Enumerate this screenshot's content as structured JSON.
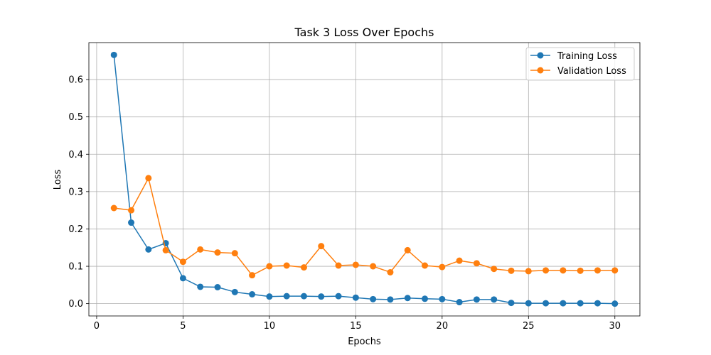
{
  "chart_data": {
    "type": "line",
    "title": "Task 3 Loss Over Epochs",
    "xlabel": "Epochs",
    "ylabel": "Loss",
    "xlim": [
      -0.45,
      31.45
    ],
    "ylim": [
      -0.033,
      0.699
    ],
    "xticks": [
      0,
      5,
      10,
      15,
      20,
      25,
      30
    ],
    "yticks": [
      0.0,
      0.1,
      0.2,
      0.3,
      0.4,
      0.5,
      0.6
    ],
    "ytick_labels": [
      "0.0",
      "0.1",
      "0.2",
      "0.3",
      "0.4",
      "0.5",
      "0.6"
    ],
    "grid": true,
    "legend_position": "top-right",
    "x": [
      1,
      2,
      3,
      4,
      5,
      6,
      7,
      8,
      9,
      10,
      11,
      12,
      13,
      14,
      15,
      16,
      17,
      18,
      19,
      20,
      21,
      22,
      23,
      24,
      25,
      26,
      27,
      28,
      29,
      30
    ],
    "series": [
      {
        "name": "Training Loss",
        "color": "#1f77b4",
        "values": [
          0.666,
          0.217,
          0.145,
          0.162,
          0.068,
          0.045,
          0.044,
          0.031,
          0.025,
          0.019,
          0.02,
          0.02,
          0.019,
          0.02,
          0.016,
          0.012,
          0.011,
          0.015,
          0.013,
          0.012,
          0.004,
          0.011,
          0.011,
          0.002,
          0.001,
          0.001,
          0.001,
          0.001,
          0.001,
          0.0
        ]
      },
      {
        "name": "Validation Loss",
        "color": "#ff7f0e",
        "values": [
          0.256,
          0.25,
          0.336,
          0.143,
          0.112,
          0.145,
          0.137,
          0.135,
          0.076,
          0.1,
          0.102,
          0.097,
          0.154,
          0.102,
          0.104,
          0.1,
          0.084,
          0.143,
          0.102,
          0.098,
          0.115,
          0.108,
          0.093,
          0.088,
          0.087,
          0.089,
          0.089,
          0.088,
          0.089,
          0.089
        ]
      }
    ]
  }
}
